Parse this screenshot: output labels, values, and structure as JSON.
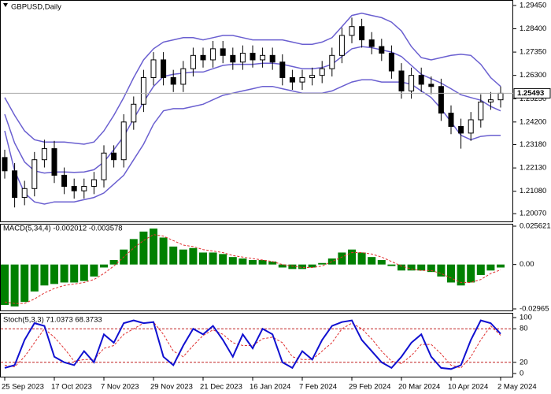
{
  "chart_data": [
    {
      "type": "candlestick",
      "title": "GBPUSD,Daily",
      "categories": [
        "25 Sep 2023",
        null,
        null,
        null,
        null,
        "17 Oct 2023",
        null,
        null,
        null,
        null,
        "7 Nov 2023",
        null,
        null,
        null,
        null,
        "29 Nov 2023",
        null,
        null,
        null,
        null,
        "21 Dec 2023",
        null,
        null,
        null,
        null,
        "16 Jan 2024",
        null,
        null,
        null,
        null,
        "7 Feb 2024",
        null,
        null,
        null,
        null,
        "29 Feb 2024",
        null,
        null,
        null,
        null,
        "20 Mar 2024",
        null,
        null,
        null,
        null,
        "10 Apr 2024",
        null,
        null,
        null,
        null,
        "2 May 2024"
      ],
      "open": [
        1.226,
        1.22,
        1.208,
        1.212,
        1.225,
        1.23,
        1.218,
        1.213,
        1.211,
        1.213,
        1.216,
        1.228,
        1.225,
        1.242,
        1.25,
        1.262,
        1.27,
        1.262,
        1.259,
        1.266,
        1.272,
        1.27,
        1.275,
        1.272,
        1.269,
        1.273,
        1.27,
        1.272,
        1.269,
        1.262,
        1.26,
        1.262,
        1.263,
        1.266,
        1.272,
        1.281,
        1.285,
        1.279,
        1.276,
        1.273,
        1.265,
        1.256,
        1.263,
        1.259,
        1.258,
        1.246,
        1.24,
        1.237,
        1.243,
        1.251,
        1.252
      ],
      "high": [
        1.2295,
        1.2235,
        1.2155,
        1.2285,
        1.234,
        1.2335,
        1.2215,
        1.2165,
        1.2165,
        1.2195,
        1.2315,
        1.2315,
        1.2455,
        1.2535,
        1.2655,
        1.2735,
        1.2735,
        1.2655,
        1.2695,
        1.2755,
        1.2755,
        1.2785,
        1.2785,
        1.2755,
        1.2765,
        1.2765,
        1.2755,
        1.2755,
        1.2725,
        1.2655,
        1.2655,
        1.2665,
        1.2695,
        1.2755,
        1.2845,
        1.289,
        1.2885,
        1.2825,
        1.2795,
        1.2765,
        1.2685,
        1.2665,
        1.2665,
        1.2625,
        1.2615,
        1.2495,
        1.2435,
        1.2465,
        1.2545,
        1.2555,
        1.258
      ],
      "low": [
        1.2165,
        1.2035,
        1.2045,
        1.2085,
        1.2215,
        1.2145,
        1.2095,
        1.2075,
        1.2075,
        1.2095,
        1.2125,
        1.2215,
        1.2215,
        1.2385,
        1.2465,
        1.2585,
        1.2585,
        1.2555,
        1.2555,
        1.2625,
        1.2665,
        1.2665,
        1.2685,
        1.2655,
        1.2655,
        1.2665,
        1.2665,
        1.2655,
        1.2585,
        1.2565,
        1.2565,
        1.2585,
        1.2595,
        1.2625,
        1.2685,
        1.2775,
        1.2755,
        1.2725,
        1.2695,
        1.2615,
        1.2525,
        1.2525,
        1.2555,
        1.2545,
        1.2425,
        1.2365,
        1.23,
        1.2335,
        1.2395,
        1.2475,
        1.2485
      ],
      "close": [
        1.22,
        1.208,
        1.212,
        1.225,
        1.23,
        1.218,
        1.213,
        1.211,
        1.213,
        1.216,
        1.228,
        1.225,
        1.242,
        1.25,
        1.262,
        1.27,
        1.262,
        1.259,
        1.266,
        1.272,
        1.27,
        1.275,
        1.272,
        1.269,
        1.273,
        1.27,
        1.272,
        1.269,
        1.262,
        1.26,
        1.262,
        1.263,
        1.266,
        1.272,
        1.281,
        1.285,
        1.279,
        1.276,
        1.273,
        1.265,
        1.256,
        1.263,
        1.259,
        1.258,
        1.246,
        1.24,
        1.237,
        1.243,
        1.251,
        1.252,
        1.25493
      ],
      "bands": {
        "upper": [
          1.253,
          1.245,
          1.238,
          1.234,
          1.233,
          1.233,
          1.233,
          1.2325,
          1.232,
          1.233,
          1.238,
          1.245,
          1.253,
          1.262,
          1.27,
          1.275,
          1.278,
          1.279,
          1.28,
          1.28,
          1.279,
          1.28,
          1.281,
          1.281,
          1.28,
          1.279,
          1.279,
          1.279,
          1.279,
          1.278,
          1.277,
          1.277,
          1.278,
          1.28,
          1.285,
          1.29,
          1.291,
          1.29,
          1.289,
          1.287,
          1.283,
          1.276,
          1.271,
          1.27,
          1.271,
          1.272,
          1.2725,
          1.272,
          1.268,
          1.262,
          1.258
        ],
        "middle": [
          1.2455,
          1.2325,
          1.224,
          1.22,
          1.219,
          1.2195,
          1.2195,
          1.2193,
          1.2195,
          1.2205,
          1.224,
          1.2295,
          1.2355,
          1.2435,
          1.251,
          1.258,
          1.2625,
          1.2635,
          1.264,
          1.2645,
          1.2645,
          1.266,
          1.2675,
          1.268,
          1.268,
          1.268,
          1.2685,
          1.2685,
          1.268,
          1.267,
          1.266,
          1.266,
          1.2665,
          1.268,
          1.2715,
          1.275,
          1.276,
          1.2755,
          1.2745,
          1.2735,
          1.2715,
          1.2675,
          1.2635,
          1.2615,
          1.2595,
          1.257,
          1.2543,
          1.253,
          1.2518,
          1.249,
          1.247
        ],
        "lower": [
          1.238,
          1.22,
          1.21,
          1.206,
          1.205,
          1.206,
          1.206,
          1.206,
          1.207,
          1.208,
          1.21,
          1.214,
          1.218,
          1.225,
          1.232,
          1.241,
          1.247,
          1.248,
          1.248,
          1.249,
          1.25,
          1.252,
          1.254,
          1.255,
          1.256,
          1.257,
          1.258,
          1.258,
          1.257,
          1.256,
          1.255,
          1.255,
          1.255,
          1.256,
          1.258,
          1.26,
          1.261,
          1.261,
          1.26,
          1.26,
          1.26,
          1.259,
          1.256,
          1.253,
          1.248,
          1.242,
          1.236,
          1.234,
          1.2355,
          1.236,
          1.236
        ]
      },
      "band_color": "#6a5fd0",
      "candle_color": "#000000",
      "ylim": [
        1.1972,
        1.2959
      ],
      "yticks": [
        {
          "value": 1.2945,
          "label": "1.29450"
        },
        {
          "value": 1.284,
          "label": "1.28400"
        },
        {
          "value": 1.2735,
          "label": "1.27350"
        },
        {
          "value": 1.263,
          "label": "1.26300"
        },
        {
          "value": 1.2525,
          "label": "1.25250"
        },
        {
          "value": 1.242,
          "label": "1.24200"
        },
        {
          "value": 1.2318,
          "label": "1.23180"
        },
        {
          "value": 1.2213,
          "label": "1.22130"
        },
        {
          "value": 1.2108,
          "label": "1.21080"
        },
        {
          "value": 1.2007,
          "label": "1.20070"
        }
      ]
    },
    {
      "type": "macd",
      "title": "MACD(5,34,4) -0.002012 -0.003578",
      "histogram": [
        -0.027,
        -0.028,
        -0.025,
        -0.018,
        -0.014,
        -0.013,
        -0.012,
        -0.012,
        -0.011,
        -0.008,
        -0.002,
        0.003,
        0.01,
        0.017,
        0.022,
        0.024,
        0.018,
        0.012,
        0.01,
        0.011,
        0.008,
        0.008,
        0.007,
        0.005,
        0.004,
        0.003,
        0.003,
        0.002,
        -0.002,
        -0.003,
        -0.003,
        -0.002,
        0.001,
        0.004,
        0.008,
        0.01,
        0.008,
        0.005,
        0.003,
        -0.001,
        -0.004,
        -0.004,
        -0.004,
        -0.005,
        -0.008,
        -0.012,
        -0.014,
        -0.012,
        -0.007,
        -0.004,
        -0.002012
      ],
      "signal": [
        -0.025,
        -0.026,
        -0.026,
        -0.023,
        -0.019,
        -0.016,
        -0.014,
        -0.013,
        -0.012,
        -0.01,
        -0.006,
        -0.001,
        0.005,
        0.011,
        0.016,
        0.02,
        0.019,
        0.016,
        0.013,
        0.012,
        0.01,
        0.009,
        0.008,
        0.006,
        0.005,
        0.004,
        0.003,
        0.002,
        0.0,
        -0.001,
        -0.002,
        -0.002,
        -0.001,
        0.002,
        0.005,
        0.008,
        0.008,
        0.007,
        0.005,
        0.002,
        -0.001,
        -0.003,
        -0.004,
        -0.004,
        -0.006,
        -0.009,
        -0.012,
        -0.012,
        -0.01,
        -0.006,
        -0.003578
      ],
      "histogram_color": "#008000",
      "signal_color": "#e03030",
      "ylim": [
        -0.02965,
        0.025621
      ],
      "yticks": [
        0.025621,
        {
          "value": 0,
          "label": "0.00"
        },
        -0.02965
      ]
    },
    {
      "type": "stoch",
      "title": "Stoch(5,3,3) 71.0373 68.3733",
      "main": [
        10,
        15,
        60,
        90,
        85,
        30,
        20,
        15,
        40,
        20,
        70,
        55,
        90,
        95,
        90,
        92,
        30,
        15,
        50,
        80,
        70,
        85,
        60,
        30,
        70,
        45,
        80,
        70,
        20,
        10,
        40,
        25,
        60,
        85,
        92,
        95,
        60,
        40,
        20,
        10,
        30,
        55,
        70,
        30,
        10,
        8,
        15,
        60,
        95,
        90,
        71.0373
      ],
      "signal": [
        15,
        12,
        30,
        55,
        80,
        65,
        45,
        22,
        25,
        25,
        45,
        50,
        70,
        80,
        90,
        92,
        70,
        40,
        30,
        50,
        68,
        78,
        70,
        55,
        50,
        50,
        62,
        65,
        55,
        30,
        25,
        25,
        40,
        55,
        80,
        90,
        80,
        62,
        40,
        22,
        18,
        32,
        52,
        52,
        35,
        15,
        10,
        30,
        60,
        85,
        68.3733
      ],
      "main_color": "#1010d0",
      "signal_color": "#e03030",
      "levels": [
        80,
        20
      ],
      "level_color": "#c02020",
      "ylim": [
        0,
        100
      ],
      "yticks": [
        100,
        80,
        20,
        0
      ]
    }
  ]
}
